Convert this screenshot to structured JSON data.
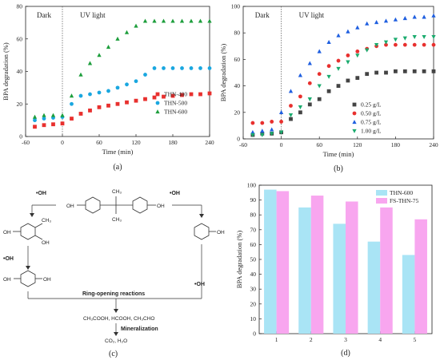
{
  "chart_data": [
    {
      "panel": "(a)",
      "type": "scatter",
      "xlabel": "Time (min)",
      "ylabel": "BPA degradation (%)",
      "xlim": [
        -60,
        240
      ],
      "ylim": [
        0,
        80
      ],
      "xticks": [
        -60,
        0,
        60,
        120,
        180,
        240
      ],
      "yticks": [
        0,
        20,
        40,
        60,
        80
      ],
      "annotations": [
        "Dark",
        "UV light"
      ],
      "divider_x": 0,
      "legend_position": "center-right",
      "grid": false,
      "series": [
        {
          "name": "THN-400",
          "color": "#e8302e",
          "marker": "square",
          "x": [
            -45,
            -30,
            -15,
            0,
            15,
            30,
            45,
            60,
            75,
            90,
            105,
            120,
            135,
            150,
            165,
            180,
            195,
            210,
            225,
            240
          ],
          "y": [
            6,
            7,
            7.5,
            8,
            11,
            14,
            16,
            18,
            19,
            20,
            21,
            22,
            23,
            24,
            24.5,
            25,
            25.5,
            26,
            26,
            26.5
          ]
        },
        {
          "name": "THN-500",
          "color": "#1aa7e0",
          "marker": "circle",
          "x": [
            -45,
            -30,
            -15,
            0,
            15,
            30,
            45,
            60,
            75,
            90,
            105,
            120,
            135,
            150,
            165,
            180,
            195,
            210,
            225,
            240
          ],
          "y": [
            10,
            11,
            11.5,
            12,
            20,
            25,
            26,
            27,
            28,
            30,
            32,
            34,
            38,
            42,
            42,
            42,
            42,
            42,
            42,
            42
          ]
        },
        {
          "name": "THN-600",
          "color": "#1d9e3c",
          "marker": "triangle",
          "x": [
            -45,
            -30,
            -15,
            0,
            15,
            30,
            45,
            60,
            75,
            90,
            105,
            120,
            135,
            150,
            165,
            180,
            195,
            210,
            225,
            240
          ],
          "y": [
            12,
            13,
            13,
            13,
            25,
            38,
            45,
            50,
            55,
            60,
            64,
            68,
            71,
            71,
            71,
            71,
            71,
            71,
            71,
            71
          ]
        }
      ]
    },
    {
      "panel": "(b)",
      "type": "scatter",
      "xlabel": "Time (min)",
      "ylabel": "BPA degradation (%)",
      "xlim": [
        -60,
        240
      ],
      "ylim": [
        0,
        100
      ],
      "xticks": [
        -60,
        0,
        60,
        120,
        180,
        240
      ],
      "yticks": [
        0,
        20,
        40,
        60,
        80,
        100
      ],
      "annotations": [
        "Dark",
        "UV light"
      ],
      "divider_x": 0,
      "legend_position": "bottom-right",
      "grid": false,
      "series": [
        {
          "name": "0.25 g/L",
          "color": "#444444",
          "marker": "square",
          "x": [
            -45,
            -30,
            -15,
            0,
            15,
            30,
            45,
            60,
            75,
            90,
            105,
            120,
            135,
            150,
            165,
            180,
            195,
            210,
            225,
            240
          ],
          "y": [
            3,
            4,
            4,
            5,
            15,
            20,
            26,
            30,
            36,
            40,
            44,
            46,
            49,
            50,
            50,
            51,
            51,
            51,
            51,
            51
          ]
        },
        {
          "name": "0.50 g/L",
          "color": "#e8302e",
          "marker": "circle",
          "x": [
            -45,
            -30,
            -15,
            0,
            15,
            30,
            45,
            60,
            75,
            90,
            105,
            120,
            135,
            150,
            165,
            180,
            195,
            210,
            225,
            240
          ],
          "y": [
            12,
            12,
            13,
            13,
            25,
            32,
            42,
            49,
            55,
            59,
            63,
            66,
            68,
            70,
            71,
            71,
            71,
            71,
            71,
            71
          ]
        },
        {
          "name": "0.75 g/L",
          "color": "#1f5fe0",
          "marker": "triangle",
          "x": [
            -45,
            -30,
            -15,
            0,
            15,
            30,
            45,
            60,
            75,
            90,
            105,
            120,
            135,
            150,
            165,
            180,
            195,
            210,
            225,
            240
          ],
          "y": [
            5,
            6,
            7,
            20,
            36,
            48,
            57,
            66,
            73,
            78,
            81,
            84,
            87,
            88,
            89,
            90,
            91,
            92,
            92,
            93
          ]
        },
        {
          "name": "1.00 g/L",
          "color": "#1aab6e",
          "marker": "triangle-down",
          "x": [
            -45,
            -30,
            -15,
            0,
            15,
            30,
            45,
            60,
            75,
            90,
            105,
            120,
            135,
            150,
            165,
            180,
            195,
            210,
            225,
            240
          ],
          "y": [
            3,
            3,
            4,
            5,
            18,
            24,
            30,
            40,
            47,
            53,
            58,
            63,
            67,
            71,
            73,
            75,
            76,
            77,
            77,
            77
          ]
        }
      ]
    },
    {
      "panel": "(d)",
      "type": "bar",
      "xlabel": "",
      "ylabel": "BPA degradation (%)",
      "categories": [
        "1",
        "2",
        "3",
        "4",
        "5"
      ],
      "ylim": [
        0,
        100
      ],
      "yticks": [
        0,
        10,
        20,
        30,
        40,
        50,
        60,
        70,
        80,
        90,
        100
      ],
      "legend_position": "top-right",
      "grid": false,
      "series": [
        {
          "name": "THN-600",
          "color": "#a9e4f5",
          "values": [
            97,
            85,
            74,
            62,
            53
          ]
        },
        {
          "name": "FS-THN-75",
          "color": "#f8a6ef",
          "values": [
            96,
            93,
            89,
            85,
            77
          ]
        }
      ]
    }
  ],
  "diagram_c": {
    "oh": "•OH",
    "ring_opening": "Ring-opening reactions",
    "products": "CH₃COOH, HCOOH, CH₃CHO",
    "mineralization": "Mineralization",
    "final": "CO₂, H₂O",
    "substituents": {
      "oh": "OH",
      "ch3": "CH₃"
    }
  },
  "captions": {
    "a": "(a)",
    "b": "(b)",
    "c": "(c)",
    "d": "(d)"
  }
}
